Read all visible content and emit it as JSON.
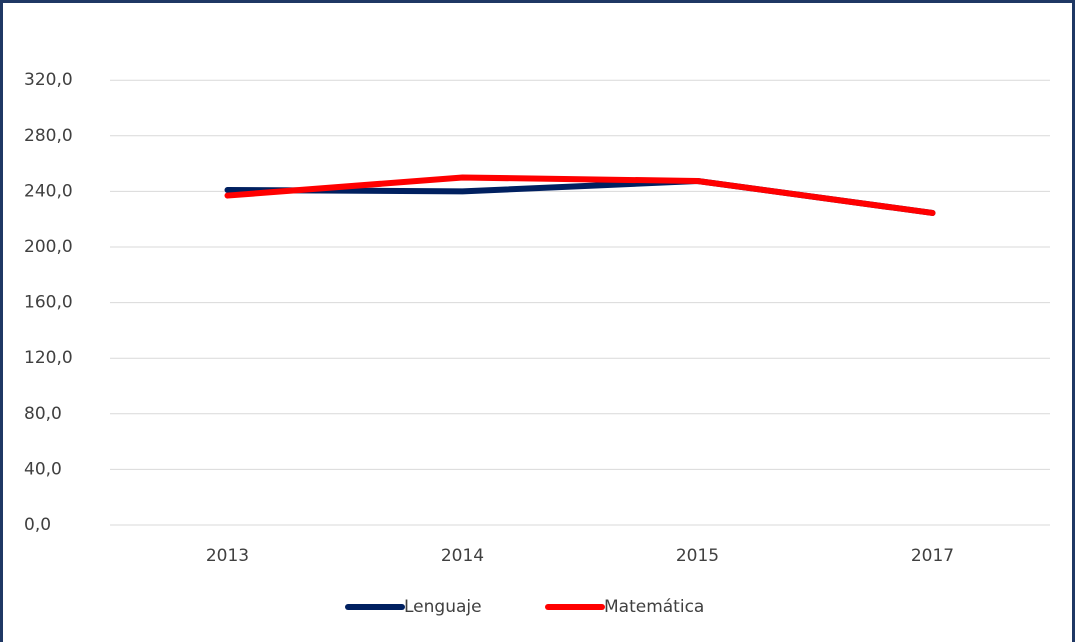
{
  "chart_data": {
    "type": "line",
    "categories": [
      "2013",
      "2014",
      "2015",
      "2017"
    ],
    "series": [
      {
        "name": "Lenguaje",
        "color": "#002060",
        "values": [
          241,
          240,
          247.5,
          224.5
        ]
      },
      {
        "name": "Matemática",
        "color": "#ff0000",
        "values": [
          237,
          250,
          247.5,
          224.5
        ]
      }
    ],
    "ylim": [
      0,
      350
    ],
    "yticks": [
      {
        "value": 0,
        "label": "0,0"
      },
      {
        "value": 40,
        "label": "40,0"
      },
      {
        "value": 80,
        "label": "80,0"
      },
      {
        "value": 120,
        "label": "120,0"
      },
      {
        "value": 160,
        "label": "160,0"
      },
      {
        "value": 200,
        "label": "200,0"
      },
      {
        "value": 240,
        "label": "240,0"
      },
      {
        "value": 280,
        "label": "280,0"
      },
      {
        "value": 320,
        "label": "320,0"
      }
    ],
    "grid": true,
    "legend": "bottom"
  }
}
